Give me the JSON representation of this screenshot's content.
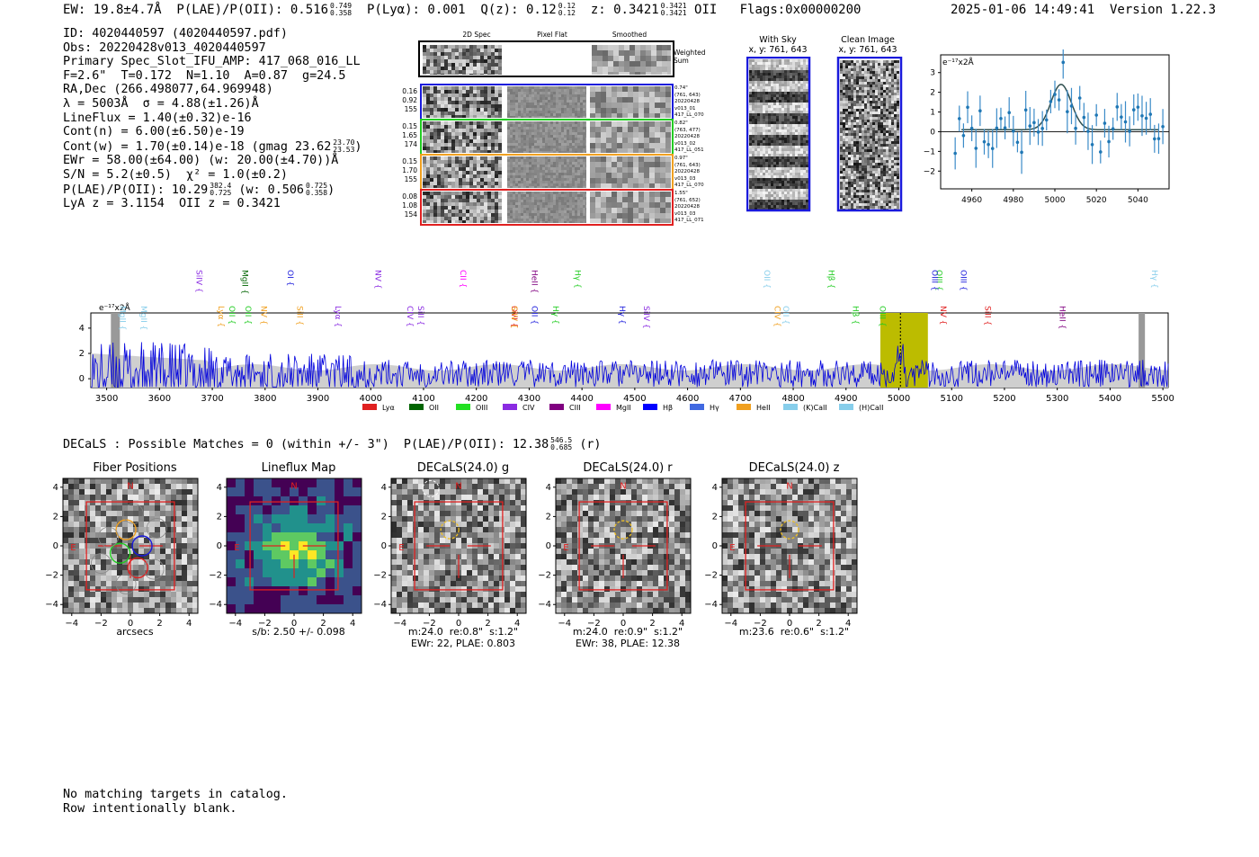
{
  "header": {
    "summary_line": "EW: 19.8±4.7Å  P(LAE)/P(OII): 0.516",
    "plae_up": "0.749",
    "plae_lo": "0.358",
    "plya_label": "P(Lyα): 0.001  Q(z): 0.12",
    "qz_up": "0.12",
    "qz_lo": "0.12",
    "z_label": "z: 0.3421",
    "z_up": "0.3421",
    "z_lo": "0.3421",
    "line_label": "OII",
    "flags": "Flags:0x00000200",
    "timestamp": "2025-01-06 14:49:41  Version 1.22.3"
  },
  "info": {
    "id": "ID: 4020440597 (4020440597.pdf)",
    "obs": "Obs: 20220428v013_4020440597",
    "primary": "Primary Spec_Slot_IFU_AMP: 417_068_016_LL",
    "params": "F=2.6\"  T=0.172  N=1.10  A=0.87  g=24.5",
    "radec": "RA,Dec (266.498077,64.969948)",
    "lambda": "λ = 5003Å  σ = 4.88(±1.26)Å",
    "lineflux": "LineFlux = 1.40(±0.32)e-16",
    "contn": "Cont(n) = 6.00(±6.50)e-19",
    "contw": "Cont(w) = 1.70(±0.14)e-18 (gmag 23.62",
    "gmag_up": "23.70",
    "gmag_lo": "23.53",
    "ewr": "EWr = 58.00(±64.00) (w: 20.00(±4.70))Å",
    "sn": "S/N = 5.2(±0.5)  χ² = 1.0(±0.2)",
    "plae": "P(LAE)/P(OII): 10.29",
    "plae2_up": "382.4",
    "plae2_lo": "0.725",
    "plae_w": "(w: 0.506",
    "plaew_up": "0.725",
    "plaew_lo": "0.358",
    "lya": "LyA z = 3.1154  OII z = 0.3421"
  },
  "cutouts": {
    "col_headers": [
      "2D Spec",
      "Pixel Flat",
      "Smoothed"
    ],
    "weighted_label": "Weighted\nSum",
    "rows": [
      {
        "stats": [
          "0.16",
          "0.92",
          "155"
        ],
        "meta": [
          "0.74\"",
          "(761, 643)",
          "20220428",
          "v013_01",
          "417_LL_070"
        ],
        "color": "#1a1adc"
      },
      {
        "stats": [
          "0.15",
          "1.65",
          "174"
        ],
        "meta": [
          "0.82\"",
          "(763, 477)",
          "20220428",
          "v013_02",
          "417_LL_051"
        ],
        "color": "#22cc22"
      },
      {
        "stats": [
          "0.15",
          "1.70",
          "155"
        ],
        "meta": [
          "0.97\"",
          "(761, 643)",
          "20220428",
          "v013_03",
          "417_LL_070"
        ],
        "color": "#f0a020"
      },
      {
        "stats": [
          "0.08",
          "1.08",
          "154"
        ],
        "meta": [
          "1.55\"",
          "(761, 652)",
          "20220428",
          "v013_03",
          "417_LL_071"
        ],
        "color": "#e02020"
      }
    ]
  },
  "sky": {
    "with_sky": "With Sky",
    "with_sky_xy": "x, y: 761, 643",
    "clean": "Clean Image",
    "clean_xy": "x, y: 761, 643"
  },
  "zoom_chart": {
    "unit_label": "e⁻¹⁷x2Å",
    "x_ticks": [
      "4960",
      "4980",
      "5000",
      "5020",
      "5040"
    ],
    "y_ticks": [
      "3",
      "2",
      "1",
      "0",
      "−1",
      "−2"
    ]
  },
  "spectrum": {
    "unit_label": "e⁻¹⁷x2Å",
    "x_ticks": [
      "3500",
      "3600",
      "3700",
      "3800",
      "3900",
      "4000",
      "4100",
      "4200",
      "4300",
      "4400",
      "4500",
      "4600",
      "4700",
      "4800",
      "4900",
      "5000",
      "5100",
      "5200",
      "5300",
      "5400",
      "5500"
    ],
    "y_ticks": [
      "4",
      "2",
      "0"
    ],
    "line_labels": [
      {
        "t": "MgII",
        "c": "#87ceeb",
        "w": 3520
      },
      {
        "t": "MgII",
        "c": "#87ceeb",
        "w": 3560
      },
      {
        "t": "SiIV",
        "c": "#8a2be2",
        "w": 3665
      },
      {
        "t": "Lyα",
        "c": "#f0a020",
        "w": 3707
      },
      {
        "t": "OII",
        "c": "#22cc22",
        "w": 3727
      },
      {
        "t": "MgII",
        "c": "#006400",
        "w": 3752
      },
      {
        "t": "NV",
        "c": "#f0a020",
        "w": 3788
      },
      {
        "t": "OII",
        "c": "#22cc22",
        "w": 3758
      },
      {
        "t": "OI",
        "c": "#1a1adc",
        "w": 3838
      },
      {
        "t": "SiII",
        "c": "#f0a020",
        "w": 3856
      },
      {
        "t": "Lyα",
        "c": "#8a2be2",
        "w": 3928
      },
      {
        "t": "NV",
        "c": "#8a2be2",
        "w": 4004
      },
      {
        "t": "CIV",
        "c": "#8a2be2",
        "w": 4064
      },
      {
        "t": "SiII",
        "c": "#8a2be2",
        "w": 4085
      },
      {
        "t": "CII",
        "c": "#ff00ff",
        "w": 4165
      },
      {
        "t": "OVI",
        "c": "#e02020",
        "w": 4262
      },
      {
        "t": "SiIV",
        "c": "#f0a020",
        "w": 4262
      },
      {
        "t": "HeII",
        "c": "#800080",
        "w": 4300
      },
      {
        "t": "OII",
        "c": "#1a1adc",
        "w": 4300
      },
      {
        "t": "Hγ",
        "c": "#22cc22",
        "w": 4340
      },
      {
        "t": "Hγ",
        "c": "#22cc22",
        "w": 4382
      },
      {
        "t": "Hγ",
        "c": "#1a1adc",
        "w": 4466
      },
      {
        "t": "SiIV",
        "c": "#8a2be2",
        "w": 4512
      },
      {
        "t": "OII",
        "c": "#87ceeb",
        "w": 4740
      },
      {
        "t": "CIV",
        "c": "#f0a020",
        "w": 4760
      },
      {
        "t": "OII",
        "c": "#87ceeb",
        "w": 4776
      },
      {
        "t": "Hβ",
        "c": "#22cc22",
        "w": 4862
      },
      {
        "t": "Hβ",
        "c": "#22cc22",
        "w": 4908
      },
      {
        "t": "OIII",
        "c": "#22cc22",
        "w": 4959
      },
      {
        "t": "OIII",
        "c": "#22cc22",
        "w": 5066
      },
      {
        "t": "NV",
        "c": "#e02020",
        "w": 5074
      },
      {
        "t": "OIII",
        "c": "#1a1adc",
        "w": 5058
      },
      {
        "t": "OIII",
        "c": "#1a1adc",
        "w": 5112
      },
      {
        "t": "SiII",
        "c": "#e02020",
        "w": 5158
      },
      {
        "t": "HeII",
        "c": "#800080",
        "w": 5300
      },
      {
        "t": "Hγ",
        "c": "#87ceeb",
        "w": 5474
      }
    ],
    "legend": [
      {
        "t": "Lyα",
        "c": "#e02020"
      },
      {
        "t": "OII",
        "c": "#006400"
      },
      {
        "t": "OIII",
        "c": "#22e022"
      },
      {
        "t": "CIV",
        "c": "#8a2be2"
      },
      {
        "t": "CIII",
        "c": "#800080"
      },
      {
        "t": "MgII",
        "c": "#ff00ff"
      },
      {
        "t": "Hβ",
        "c": "#0000ff"
      },
      {
        "t": "Hγ",
        "c": "#4169e1"
      },
      {
        "t": "HeII",
        "c": "#f0a020"
      },
      {
        "t": "(K)CaII",
        "c": "#87ceeb"
      },
      {
        "t": "(H)CaII",
        "c": "#87ceeb"
      }
    ]
  },
  "decals": {
    "summary": "DECaLS : Possible Matches = 0 (within +/- 3\")  P(LAE)/P(OII): 12.38",
    "sum_up": "546.5",
    "sum_lo": "0.685",
    "sum_band": "(r)",
    "panels": [
      {
        "title": "Fiber Positions",
        "caption": "arcsecs"
      },
      {
        "title": "Lineflux Map",
        "caption": "s/b: 2.50 +/- 0.098"
      },
      {
        "title": "DECaLS(24.0) g",
        "caption": "m:24.0  re:0.8\"  s:1.2\"\nEWr: 22, PLAE: 0.803"
      },
      {
        "title": "DECaLS(24.0) r",
        "caption": "m:24.0  re:0.9\"  s:1.2\"\nEWr: 38, PLAE: 12.38"
      },
      {
        "title": "DECaLS(24.0) z",
        "caption": "m:23.6  re:0.6\"  s:1.2\""
      }
    ],
    "ticks_x": [
      "−4",
      "−2",
      "0",
      "2",
      "4"
    ],
    "ticks_y": [
      "4",
      "2",
      "0",
      "−2",
      "−4"
    ],
    "north": "N",
    "east": "E"
  },
  "footer": {
    "line1": "No matching targets in catalog.",
    "line2": "Row intentionally blank."
  }
}
